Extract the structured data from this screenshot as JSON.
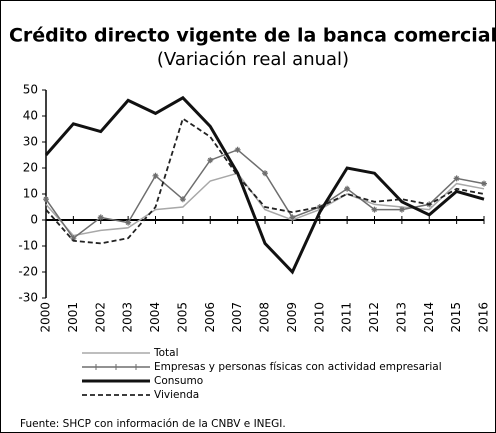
{
  "chart_data": {
    "type": "line",
    "title": "Crédito directo vigente de la banca comercial",
    "subtitle": "(Variación real anual)",
    "categories": [
      "2000",
      "2001",
      "2002",
      "2003",
      "2004",
      "2005",
      "2006",
      "2007",
      "2008",
      "2009",
      "2010",
      "2011",
      "2012",
      "2013",
      "2014",
      "2015",
      "2016"
    ],
    "series": [
      {
        "name": "Total",
        "color": "#a8a8a8",
        "style": "solid",
        "values": [
          6,
          -6,
          -4,
          -3,
          4,
          5,
          15,
          18,
          4,
          0,
          4,
          10,
          6,
          5,
          4,
          14,
          12
        ]
      },
      {
        "name": "Empresas y personas físicas con actividad empresarial",
        "color": "#6e6e6e",
        "style": "markers",
        "values": [
          8,
          -7,
          1,
          -1,
          17,
          8,
          23,
          27,
          18,
          1,
          5,
          12,
          4,
          4,
          6,
          16,
          14
        ]
      },
      {
        "name": "Consumo",
        "color": "#111111",
        "style": "thick",
        "values": [
          25,
          37,
          34,
          46,
          41,
          47,
          36,
          18,
          -9,
          -20,
          3,
          20,
          18,
          7,
          2,
          11,
          8
        ]
      },
      {
        "name": "Vivienda",
        "color": "#222222",
        "style": "dashed",
        "values": [
          4,
          -8,
          -9,
          -7,
          5,
          39,
          32,
          17,
          5,
          3,
          5,
          10,
          7,
          8,
          6,
          12,
          10
        ]
      }
    ],
    "ylim": [
      -30,
      50
    ],
    "yticks": [
      -30,
      -20,
      -10,
      0,
      10,
      20,
      30,
      40,
      50
    ],
    "source": "Fuente: SHCP con información de la CNBV e INEGI."
  }
}
